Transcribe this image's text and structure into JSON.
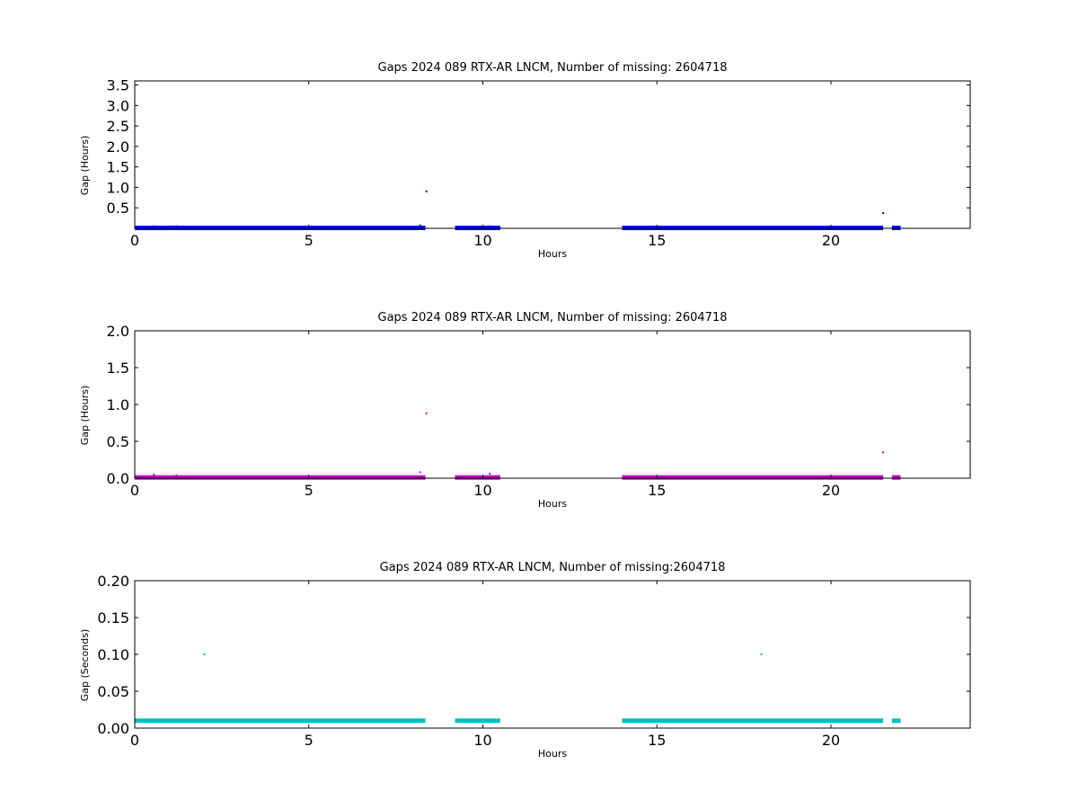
{
  "chart_data": [
    {
      "type": "scatter",
      "title": "Gaps 2024 089 RTX-AR  LNCM, Number of missing: 2604718",
      "xlabel": "Hours",
      "ylabel": "Gap (Hours)",
      "xlim": [
        0,
        24
      ],
      "ylim": [
        0,
        3.6
      ],
      "xticks": [
        "0",
        "5",
        "10",
        "15",
        "20"
      ],
      "xtick_values": [
        0,
        5,
        10,
        15,
        20
      ],
      "yticks": [
        "0.5",
        "1.0",
        "1.5",
        "2.0",
        "2.5",
        "3.0",
        "3.5"
      ],
      "ytick_values": [
        0.5,
        1.0,
        1.5,
        2.0,
        2.5,
        3.0,
        3.5
      ],
      "color": "#0000ff",
      "dense_segments": [
        {
          "x_start": 0.0,
          "x_end": 8.35,
          "y": 0.01
        },
        {
          "x_start": 9.2,
          "x_end": 10.5,
          "y": 0.01
        },
        {
          "x_start": 14.0,
          "x_end": 21.5,
          "y": 0.01
        },
        {
          "x_start": 21.75,
          "x_end": 22.0,
          "y": 0.01
        }
      ],
      "points": [
        {
          "x": 0.55,
          "y": 0.05
        },
        {
          "x": 1.2,
          "y": 0.05
        },
        {
          "x": 8.2,
          "y": 0.07
        },
        {
          "x": 8.38,
          "y": 0.9
        },
        {
          "x": 10.2,
          "y": 0.05
        },
        {
          "x": 21.5,
          "y": 0.37
        }
      ]
    },
    {
      "type": "scatter",
      "title": "Gaps 2024 089 RTX-AR  LNCM, Number of missing: 2604718",
      "xlabel": "Hours",
      "ylabel": "Gap (Hours)",
      "xlim": [
        0,
        24
      ],
      "ylim": [
        0,
        2.0
      ],
      "xticks": [
        "0",
        "5",
        "10",
        "15",
        "20"
      ],
      "xtick_values": [
        0,
        5,
        10,
        15,
        20
      ],
      "yticks": [
        "0.0",
        "0.5",
        "1.0",
        "1.5",
        "2.0"
      ],
      "ytick_values": [
        0.0,
        0.5,
        1.0,
        1.5,
        2.0
      ],
      "color": "#bf00bf",
      "dense_segments": [
        {
          "x_start": 0.0,
          "x_end": 8.35,
          "y": 0.01
        },
        {
          "x_start": 9.2,
          "x_end": 10.5,
          "y": 0.01
        },
        {
          "x_start": 14.0,
          "x_end": 21.5,
          "y": 0.01
        },
        {
          "x_start": 21.75,
          "x_end": 22.0,
          "y": 0.01
        }
      ],
      "points": [
        {
          "x": 0.55,
          "y": 0.05
        },
        {
          "x": 1.2,
          "y": 0.04
        },
        {
          "x": 8.2,
          "y": 0.08
        },
        {
          "x": 8.38,
          "y": 0.88
        },
        {
          "x": 10.2,
          "y": 0.06
        },
        {
          "x": 21.5,
          "y": 0.35
        }
      ]
    },
    {
      "type": "scatter",
      "title": "Gaps 2024 089 RTX-AR  LNCM, Number of missing:2604718",
      "xlabel": "Hours",
      "ylabel": "Gap (Seconds)",
      "xlim": [
        0,
        24
      ],
      "ylim": [
        0,
        0.2
      ],
      "xticks": [
        "0",
        "5",
        "10",
        "15",
        "20"
      ],
      "xtick_values": [
        0,
        5,
        10,
        15,
        20
      ],
      "yticks": [
        "0.00",
        "0.05",
        "0.10",
        "0.15",
        "0.20"
      ],
      "ytick_values": [
        0.0,
        0.05,
        0.1,
        0.15,
        0.2
      ],
      "color": "#00bfbf",
      "dense_segments": [
        {
          "x_start": 0.0,
          "x_end": 8.35,
          "y": 0.01
        },
        {
          "x_start": 9.2,
          "x_end": 10.5,
          "y": 0.01
        },
        {
          "x_start": 14.0,
          "x_end": 21.5,
          "y": 0.01
        },
        {
          "x_start": 21.75,
          "x_end": 22.0,
          "y": 0.01
        }
      ],
      "points": [
        {
          "x": 2.0,
          "y": 0.1
        },
        {
          "x": 18.0,
          "y": 0.1
        }
      ]
    }
  ]
}
